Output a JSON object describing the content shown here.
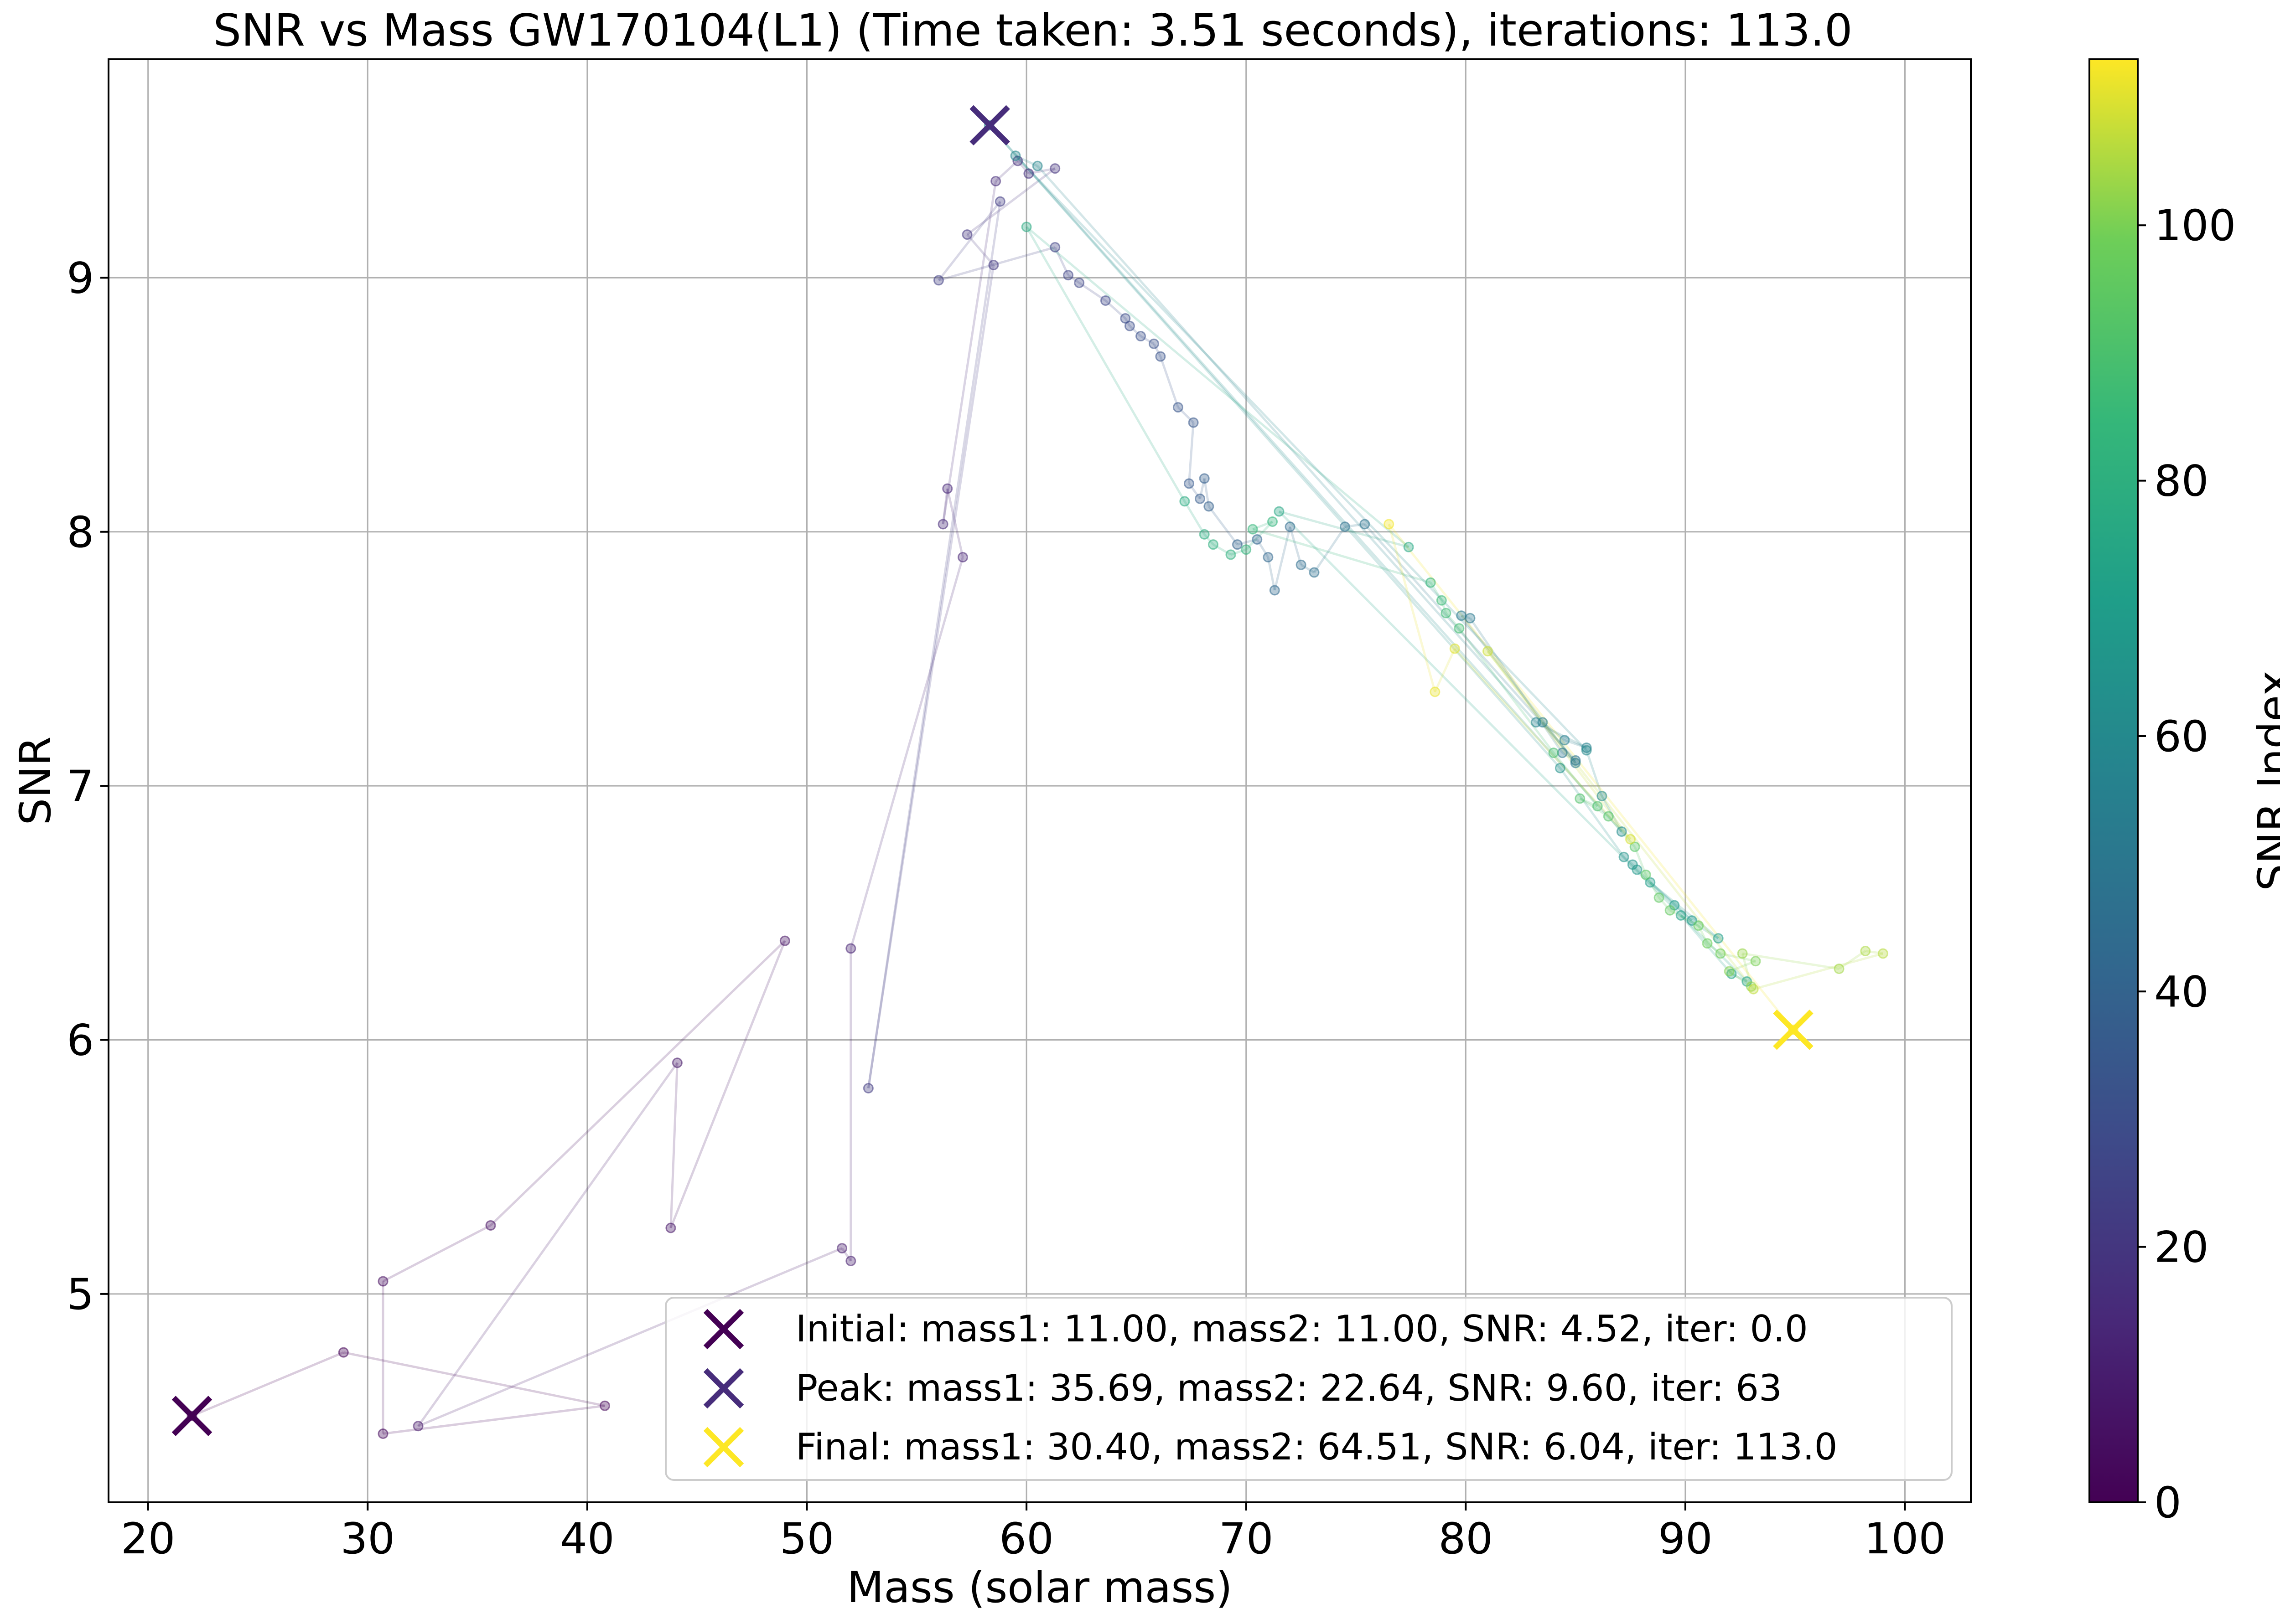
{
  "chart_data": {
    "type": "scatter",
    "title": "SNR vs Mass GW170104(L1) (Time taken: 3.51 seconds), iterations: 113.0",
    "xlabel": "Mass (solar mass)",
    "ylabel": "SNR",
    "xlim": [
      18.2,
      103.0
    ],
    "ylim": [
      4.18,
      9.86
    ],
    "xticks": [
      20,
      30,
      40,
      50,
      60,
      70,
      80,
      90,
      100
    ],
    "yticks": [
      5,
      6,
      7,
      8,
      9
    ],
    "grid": true,
    "colormap": "viridis",
    "colorbar": {
      "label": "SNR Index",
      "range": [
        0,
        113
      ],
      "ticks": [
        0,
        20,
        40,
        60,
        80,
        100
      ]
    },
    "legend": {
      "location": "lower-right",
      "entries": [
        "Initial: mass1: 11.00, mass2: 11.00, SNR: 4.52, iter: 0.0",
        "Peak: mass1: 35.69, mass2: 22.64, SNR: 9.60, iter: 63",
        "Final: mass1: 30.40, mass2: 64.51, SNR: 6.04, iter: 113.0"
      ]
    },
    "markers": [
      {
        "name": "Initial",
        "x": 22.0,
        "y": 4.52,
        "iter": 0,
        "color": "#440154"
      },
      {
        "name": "Peak",
        "x": 58.33,
        "y": 9.6,
        "iter": 63,
        "color": "#472d7b"
      },
      {
        "name": "Final",
        "x": 94.91,
        "y": 6.04,
        "iter": 113,
        "color": "#fde725"
      }
    ],
    "points": [
      [
        22.0,
        4.52
      ],
      [
        28.9,
        4.77
      ],
      [
        40.8,
        4.56
      ],
      [
        30.7,
        4.45
      ],
      [
        30.7,
        5.05
      ],
      [
        35.6,
        5.27
      ],
      [
        49.0,
        6.39
      ],
      [
        43.8,
        5.26
      ],
      [
        44.1,
        5.91
      ],
      [
        32.3,
        4.48
      ],
      [
        51.6,
        5.18
      ],
      [
        52.0,
        5.13
      ],
      [
        52.0,
        6.36
      ],
      [
        57.1,
        7.9
      ],
      [
        56.4,
        8.17
      ],
      [
        56.2,
        8.03
      ],
      [
        58.6,
        9.38
      ],
      [
        59.6,
        9.46
      ],
      [
        60.1,
        9.41
      ],
      [
        61.3,
        9.43
      ],
      [
        57.3,
        9.17
      ],
      [
        58.5,
        9.05
      ],
      [
        52.8,
        5.81
      ],
      [
        58.8,
        9.3
      ],
      [
        56.0,
        8.99
      ],
      [
        61.3,
        9.12
      ],
      [
        61.9,
        9.01
      ],
      [
        62.4,
        8.98
      ],
      [
        63.6,
        8.91
      ],
      [
        64.5,
        8.84
      ],
      [
        64.7,
        8.81
      ],
      [
        65.2,
        8.77
      ],
      [
        65.8,
        8.74
      ],
      [
        66.1,
        8.69
      ],
      [
        66.9,
        8.49
      ],
      [
        67.6,
        8.43
      ],
      [
        67.4,
        8.19
      ],
      [
        67.9,
        8.13
      ],
      [
        68.1,
        8.21
      ],
      [
        68.3,
        8.1
      ],
      [
        69.6,
        7.95
      ],
      [
        70.5,
        7.97
      ],
      [
        71.0,
        7.9
      ],
      [
        71.3,
        7.77
      ],
      [
        72.0,
        8.02
      ],
      [
        72.5,
        7.87
      ],
      [
        73.1,
        7.84
      ],
      [
        74.5,
        8.02
      ],
      [
        75.4,
        8.03
      ],
      [
        85.0,
        7.1
      ],
      [
        84.4,
        7.13
      ],
      [
        80.2,
        7.66
      ],
      [
        79.8,
        7.67
      ],
      [
        85.0,
        7.09
      ],
      [
        83.5,
        7.25
      ],
      [
        84.5,
        7.18
      ],
      [
        85.5,
        7.15
      ],
      [
        83.2,
        7.25
      ],
      [
        60.5,
        9.44
      ],
      [
        59.5,
        9.48
      ],
      [
        85.5,
        7.14
      ],
      [
        86.2,
        6.96
      ],
      [
        87.1,
        6.82
      ],
      [
        58.3,
        9.6
      ],
      [
        84.3,
        7.07
      ],
      [
        87.2,
        6.72
      ],
      [
        87.6,
        6.69
      ],
      [
        87.8,
        6.67
      ],
      [
        90.3,
        6.47
      ],
      [
        89.5,
        6.53
      ],
      [
        88.4,
        6.62
      ],
      [
        91.5,
        6.4
      ],
      [
        89.8,
        6.49
      ],
      [
        92.1,
        6.26
      ],
      [
        92.8,
        6.23
      ],
      [
        71.5,
        8.08
      ],
      [
        77.4,
        7.94
      ],
      [
        60.0,
        9.2
      ],
      [
        67.2,
        8.12
      ],
      [
        68.1,
        7.99
      ],
      [
        68.5,
        7.95
      ],
      [
        69.3,
        7.91
      ],
      [
        70.0,
        7.93
      ],
      [
        71.2,
        8.04
      ],
      [
        70.3,
        8.01
      ],
      [
        78.4,
        7.8
      ],
      [
        78.9,
        7.73
      ],
      [
        79.1,
        7.68
      ],
      [
        79.7,
        7.62
      ],
      [
        84.0,
        7.13
      ],
      [
        86.0,
        6.92
      ],
      [
        85.2,
        6.95
      ],
      [
        86.5,
        6.88
      ],
      [
        87.7,
        6.76
      ],
      [
        88.2,
        6.65
      ],
      [
        88.8,
        6.56
      ],
      [
        89.3,
        6.51
      ],
      [
        90.6,
        6.45
      ],
      [
        91.0,
        6.38
      ],
      [
        91.6,
        6.34
      ],
      [
        93.2,
        6.31
      ],
      [
        92.0,
        6.27
      ],
      [
        93.0,
        6.21
      ],
      [
        92.6,
        6.34
      ],
      [
        97.0,
        6.28
      ],
      [
        98.2,
        6.35
      ],
      [
        99.0,
        6.34
      ],
      [
        93.1,
        6.2
      ],
      [
        81.0,
        7.53
      ],
      [
        87.5,
        6.79
      ],
      [
        79.5,
        7.54
      ],
      [
        78.6,
        7.37
      ],
      [
        76.5,
        8.03
      ],
      [
        94.91,
        6.04
      ]
    ]
  }
}
